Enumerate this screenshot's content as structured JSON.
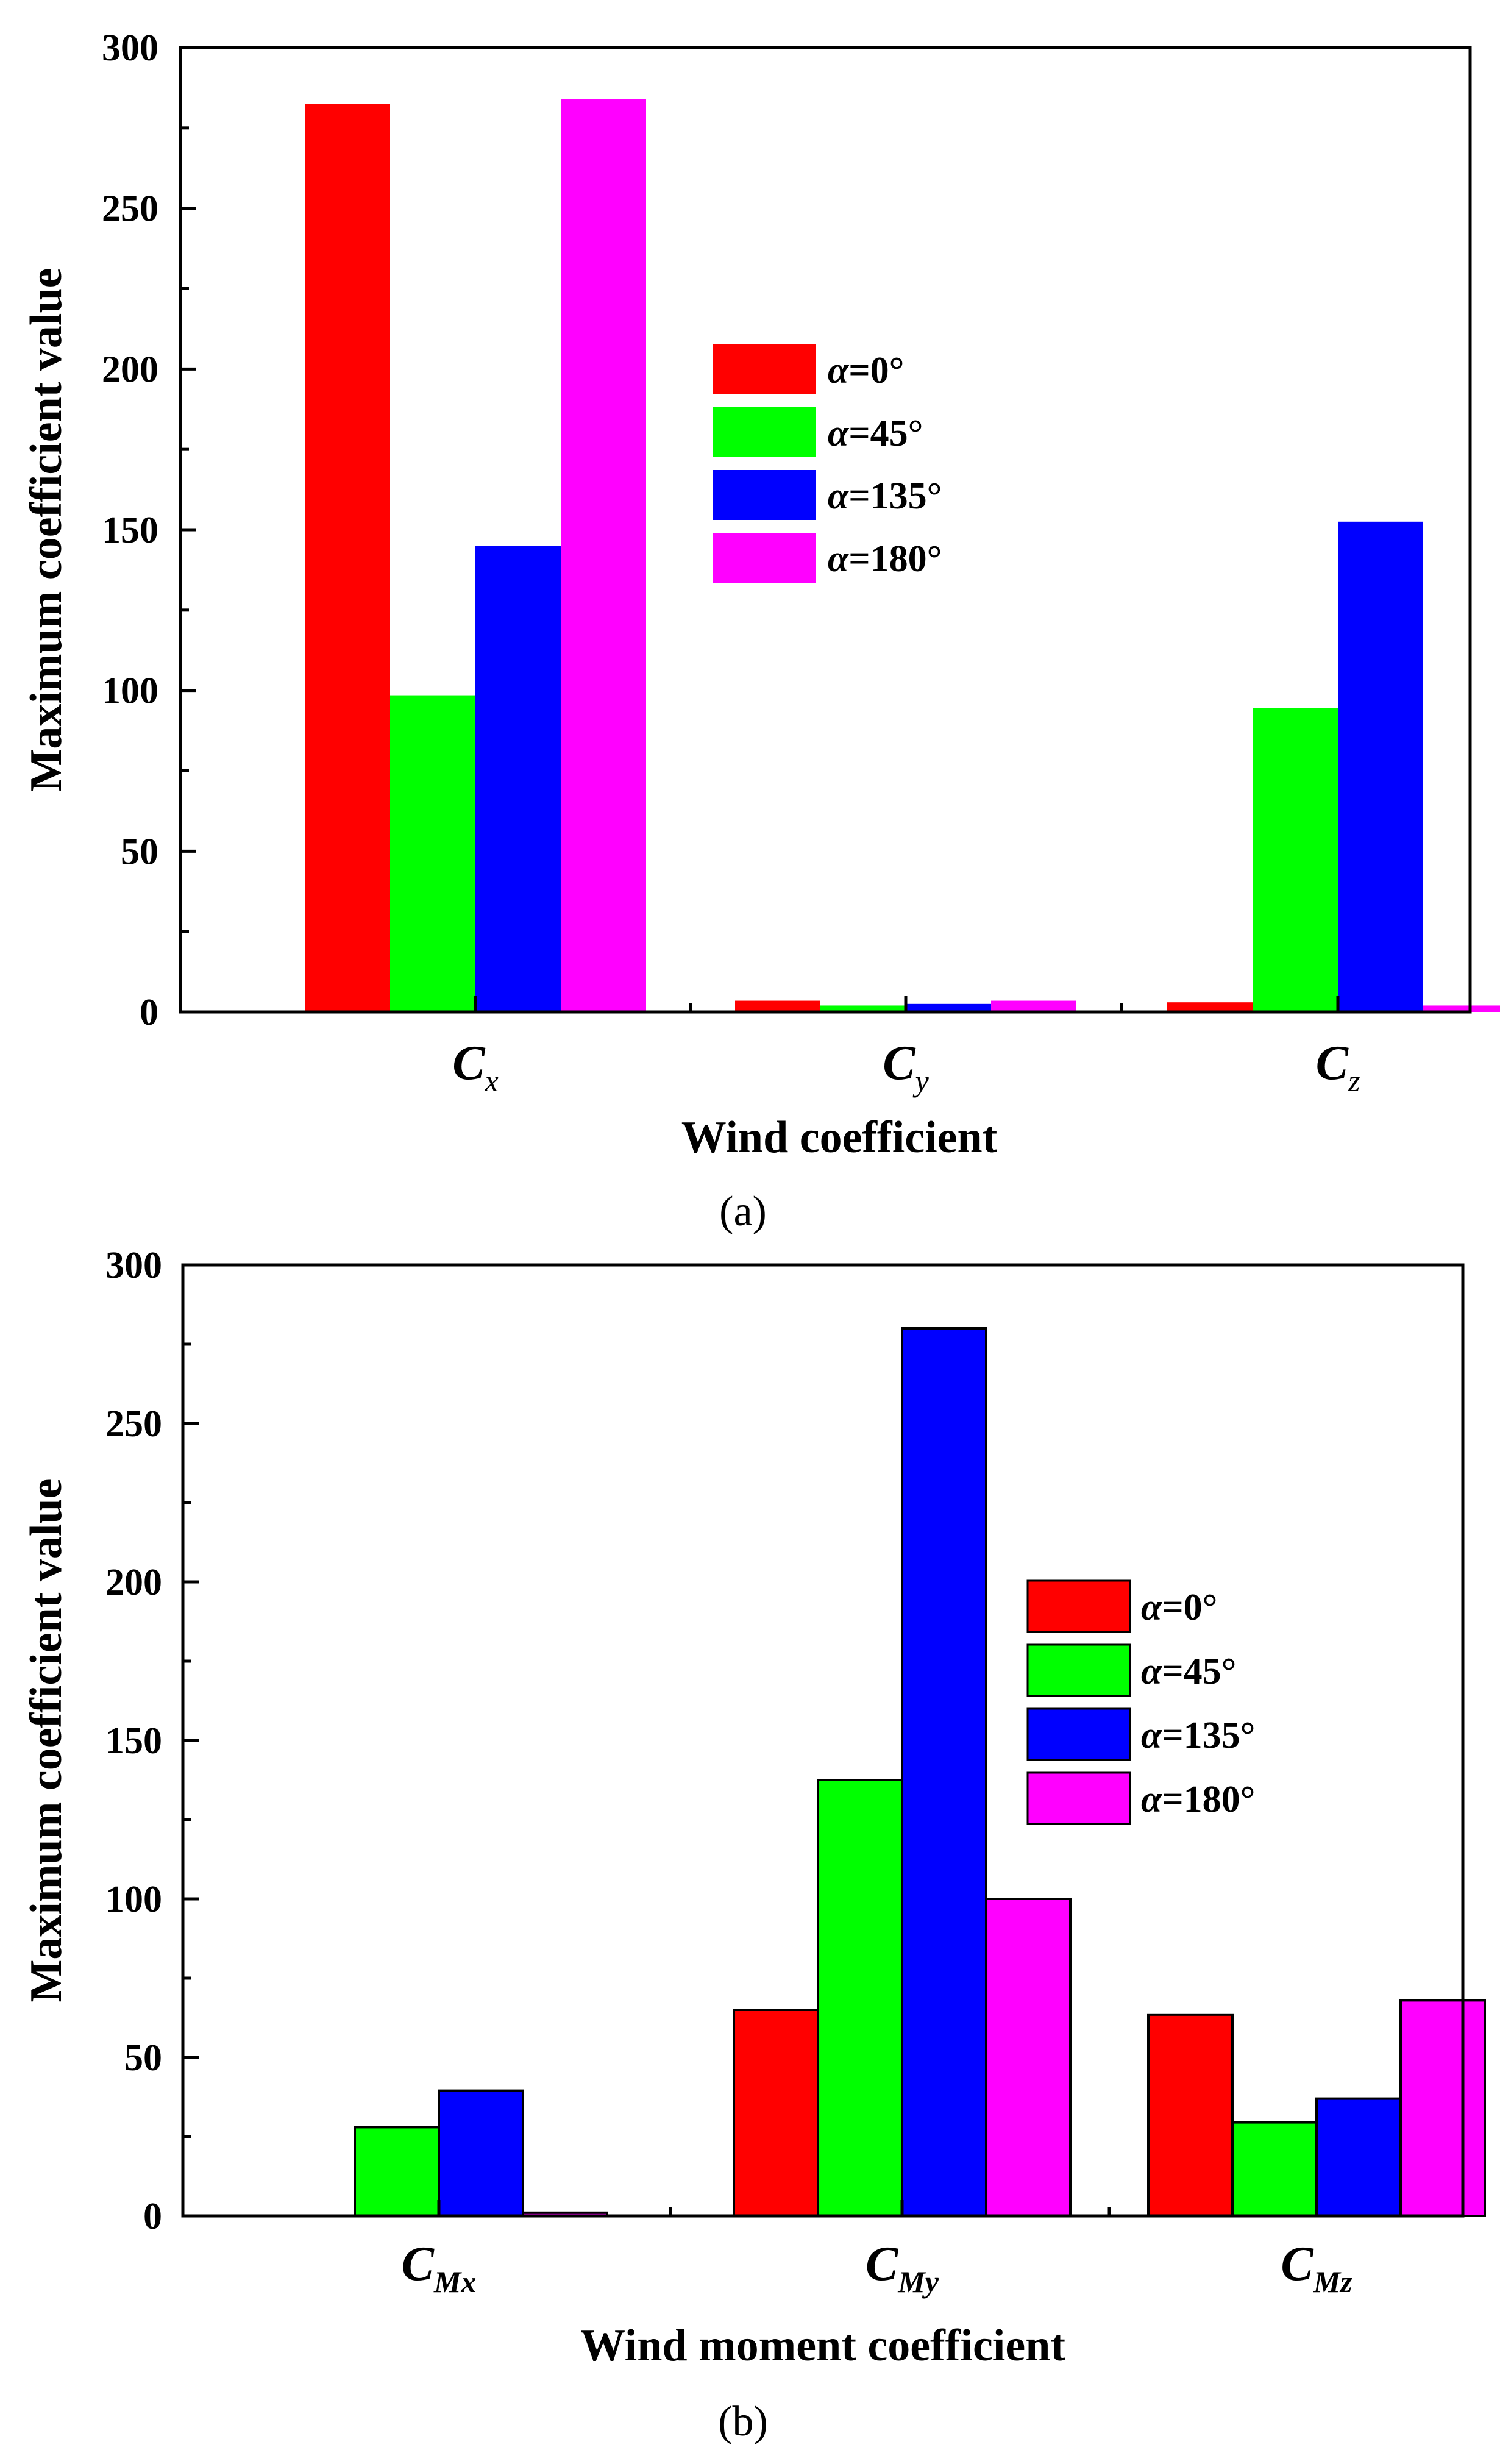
{
  "chart_data": [
    {
      "type": "bar",
      "panel_label": "(a)",
      "categories": [
        {
          "main": "C",
          "sub": "x"
        },
        {
          "main": "C",
          "sub": "y"
        },
        {
          "main": "C",
          "sub": "z"
        }
      ],
      "series": [
        {
          "name": "α=0°",
          "alpha_symbol": "α",
          "rest": "=0°",
          "color": "#ff0000",
          "values": [
            282.5,
            3.5,
            3.0
          ]
        },
        {
          "name": "α=45°",
          "alpha_symbol": "α",
          "rest": "=45°",
          "color": "#00ff00",
          "values": [
            98.5,
            2.0,
            94.5
          ]
        },
        {
          "name": "α=135°",
          "alpha_symbol": "α",
          "rest": "=135°",
          "color": "#0000ff",
          "values": [
            145.0,
            2.5,
            152.5
          ]
        },
        {
          "name": "α=180°",
          "alpha_symbol": "α",
          "rest": "=180°",
          "color": "#ff00ff",
          "values": [
            284.0,
            3.5,
            2.0
          ]
        }
      ],
      "xlabel": "Wind coefficient",
      "ylabel": "Maximum coefficient value",
      "ylim": [
        0,
        300
      ],
      "yticks": [
        0,
        50,
        100,
        150,
        200,
        250,
        300
      ],
      "legend_position": "center",
      "bar_outline": false
    },
    {
      "type": "bar",
      "panel_label": "(b)",
      "categories": [
        {
          "main": "C",
          "sub": "Mx"
        },
        {
          "main": "C",
          "sub": "My"
        },
        {
          "main": "C",
          "sub": "Mz"
        }
      ],
      "series": [
        {
          "name": "α=0°",
          "alpha_symbol": "α",
          "rest": "=0°",
          "color": "#ff0000",
          "values": [
            0,
            65.0,
            63.5
          ]
        },
        {
          "name": "α=45°",
          "alpha_symbol": "α",
          "rest": "=45°",
          "color": "#00ff00",
          "values": [
            28.0,
            137.5,
            29.5
          ]
        },
        {
          "name": "α=135°",
          "alpha_symbol": "α",
          "rest": "=135°",
          "color": "#0000ff",
          "values": [
            39.5,
            280.0,
            37.0
          ]
        },
        {
          "name": "α=180°",
          "alpha_symbol": "α",
          "rest": "=180°",
          "color": "#ff00ff",
          "values": [
            1.0,
            100.0,
            68.0
          ]
        }
      ],
      "xlabel": "Wind moment coefficient",
      "ylabel": "Maximum coefficient value",
      "ylim": [
        0,
        300
      ],
      "yticks": [
        0,
        50,
        100,
        150,
        200,
        250,
        300
      ],
      "legend_position": "right",
      "bar_outline": true
    }
  ]
}
